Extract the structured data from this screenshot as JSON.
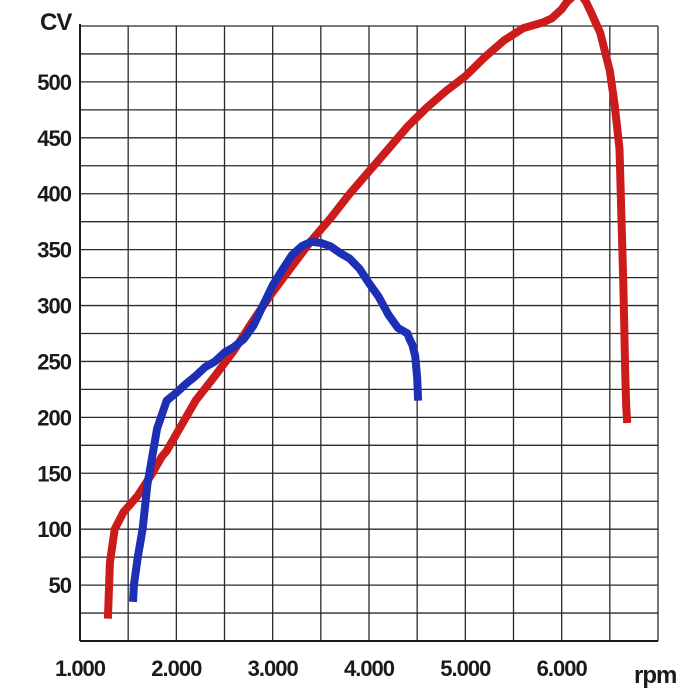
{
  "chart_data": {
    "type": "line",
    "ylabel": "CV",
    "xlabel": "rpm",
    "xlim": [
      1000,
      7000
    ],
    "ylim": [
      0,
      550
    ],
    "x_ticks": [
      1000,
      2000,
      3000,
      4000,
      5000,
      6000
    ],
    "x_tick_labels": [
      "1.000",
      "2.000",
      "3.000",
      "4.000",
      "5.000",
      "6.000"
    ],
    "y_ticks": [
      50,
      100,
      150,
      200,
      250,
      300,
      350,
      400,
      450,
      500
    ],
    "y_tick_labels": [
      "50",
      "100",
      "150",
      "200",
      "250",
      "300",
      "350",
      "400",
      "450",
      "500"
    ],
    "grid": true,
    "series": [
      {
        "color": "#cc1b1b",
        "x": [
          1290,
          1310,
          1360,
          1450,
          1600,
          1750,
          1850,
          1900,
          2000,
          2100,
          2200,
          2400,
          2600,
          2800,
          3000,
          3200,
          3400,
          3600,
          3800,
          4000,
          4200,
          4400,
          4600,
          4800,
          5000,
          5200,
          5400,
          5600,
          5800,
          5900,
          6000,
          6050,
          6100,
          6150,
          6200,
          6250,
          6300,
          6400,
          6500,
          6550,
          6600,
          6620,
          6640,
          6650,
          6660,
          6670,
          6680
        ],
        "y": [
          20,
          70,
          100,
          115,
          130,
          150,
          165,
          170,
          185,
          200,
          215,
          237,
          260,
          287,
          312,
          335,
          358,
          378,
          400,
          420,
          440,
          460,
          477,
          492,
          505,
          522,
          537,
          548,
          553,
          557,
          565,
          571,
          575,
          579,
          578,
          572,
          563,
          544,
          510,
          480,
          440,
          380,
          320,
          280,
          240,
          210,
          195
        ]
      },
      {
        "color": "#1c2fb5",
        "x": [
          1550,
          1560,
          1600,
          1650,
          1700,
          1800,
          1900,
          2000,
          2100,
          2200,
          2300,
          2400,
          2500,
          2600,
          2700,
          2800,
          2900,
          3000,
          3100,
          3200,
          3300,
          3400,
          3500,
          3600,
          3700,
          3800,
          3900,
          4000,
          4100,
          4200,
          4300,
          4400,
          4420,
          4450,
          4480,
          4500,
          4510
        ],
        "y": [
          35,
          50,
          75,
          100,
          140,
          190,
          215,
          222,
          230,
          237,
          245,
          250,
          258,
          263,
          270,
          282,
          300,
          318,
          332,
          345,
          353,
          357,
          356,
          353,
          347,
          342,
          333,
          320,
          308,
          292,
          280,
          275,
          270,
          265,
          255,
          235,
          215
        ]
      }
    ]
  }
}
